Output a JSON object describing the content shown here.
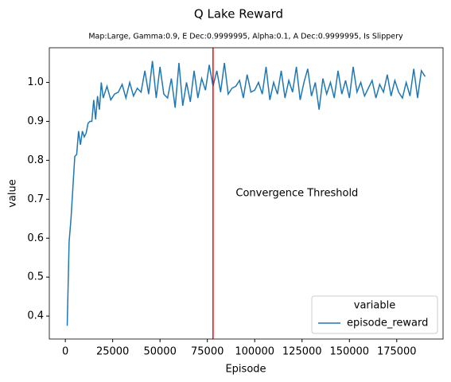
{
  "chart_data": {
    "type": "line",
    "title": "Q Lake Reward",
    "subtitle": "Map:Large, Gamma:0.9, E Dec:0.9999995, Alpha:0.1, A Dec:0.9999995, Is Slippery",
    "xlabel": "Episode",
    "ylabel": "value",
    "x": [
      1000,
      2000,
      3000,
      4000,
      5000,
      6000,
      7000,
      8000,
      9000,
      10000,
      11000,
      12000,
      13000,
      14000,
      15000,
      16000,
      17000,
      18000,
      19000,
      20000,
      22000,
      24000,
      26000,
      28000,
      30000,
      32000,
      34000,
      36000,
      38000,
      40000,
      42000,
      44000,
      46000,
      48000,
      50000,
      52000,
      54000,
      56000,
      58000,
      60000,
      62000,
      64000,
      66000,
      68000,
      70000,
      72000,
      74000,
      76000,
      78000,
      80000,
      82000,
      84000,
      86000,
      88000,
      90000,
      92000,
      94000,
      96000,
      98000,
      100000,
      102000,
      104000,
      106000,
      108000,
      110000,
      112000,
      114000,
      116000,
      118000,
      120000,
      122000,
      124000,
      126000,
      128000,
      130000,
      132000,
      134000,
      136000,
      138000,
      140000,
      142000,
      144000,
      146000,
      148000,
      150000,
      152000,
      154000,
      156000,
      158000,
      160000,
      162000,
      164000,
      166000,
      168000,
      170000,
      172000,
      174000,
      176000,
      178000,
      180000,
      182000,
      184000,
      186000,
      188000,
      190000
    ],
    "series": [
      {
        "name": "episode_reward",
        "color": "#1f77b4",
        "values": [
          0.375,
          0.59,
          0.65,
          0.73,
          0.81,
          0.815,
          0.875,
          0.84,
          0.875,
          0.86,
          0.87,
          0.895,
          0.9,
          0.9,
          0.955,
          0.905,
          0.965,
          0.93,
          1.0,
          0.96,
          0.99,
          0.955,
          0.97,
          0.975,
          0.995,
          0.96,
          1.0,
          0.965,
          0.985,
          0.975,
          1.03,
          0.97,
          1.055,
          0.96,
          1.04,
          0.97,
          0.96,
          1.01,
          0.935,
          1.05,
          0.94,
          1.0,
          0.95,
          1.03,
          0.96,
          1.01,
          0.98,
          1.045,
          0.99,
          1.03,
          0.975,
          1.05,
          0.97,
          0.985,
          0.99,
          1.005,
          0.96,
          1.02,
          0.975,
          0.98,
          1.0,
          0.97,
          1.04,
          0.955,
          1.0,
          0.97,
          1.03,
          0.96,
          1.005,
          0.975,
          1.04,
          0.955,
          1.0,
          1.035,
          0.965,
          1.0,
          0.93,
          1.01,
          0.97,
          1.0,
          0.96,
          1.03,
          0.97,
          1.005,
          0.96,
          1.04,
          0.975,
          1.0,
          0.965,
          0.985,
          1.005,
          0.96,
          0.995,
          0.975,
          1.02,
          0.965,
          1.005,
          0.975,
          0.96,
          1.0,
          0.965,
          1.035,
          0.96,
          1.03,
          1.015
        ]
      }
    ],
    "xlim": [
      -8450,
      199450
    ],
    "xticks": [
      0,
      25000,
      50000,
      75000,
      100000,
      125000,
      150000,
      175000
    ],
    "ylim": [
      0.341,
      1.089
    ],
    "yticks": [
      0.4,
      0.5,
      0.6,
      0.7,
      0.8,
      0.9,
      {
        "value": 1.0,
        "label": "1.0"
      }
    ],
    "vline": {
      "x": 78000,
      "color": "#ff0000"
    },
    "annotation": {
      "text": "Convergence Threshold",
      "x": 90000,
      "y": 0.715,
      "color": "#ff0000"
    },
    "legend": {
      "title": "variable",
      "location": "lower right"
    }
  }
}
